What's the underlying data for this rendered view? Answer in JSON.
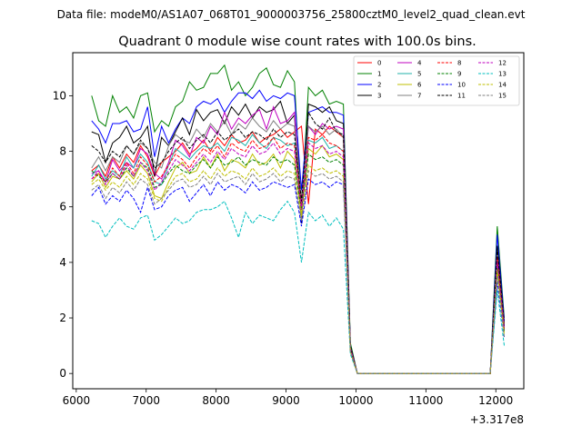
{
  "chart_data": {
    "type": "line",
    "suptitle": "Data file: modeM0/AS1A07_068T01_9000003756_25800cztM0_level2_quad_clean.evt",
    "title": "Quadrant 0 module wise count rates with 100.0s bins.",
    "xlabel": "",
    "ylabel": "",
    "x_offset_label": "+3.317e8",
    "xlim": [
      5950,
      12400
    ],
    "ylim": [
      -0.55,
      11.55
    ],
    "xticks": [
      6000,
      7000,
      8000,
      9000,
      10000,
      11000,
      12000
    ],
    "yticks": [
      0,
      2,
      4,
      6,
      8,
      10
    ],
    "legend_position": "top-right",
    "x": [
      6220,
      6320,
      6420,
      6520,
      6620,
      6720,
      6820,
      6920,
      7020,
      7120,
      7220,
      7320,
      7420,
      7520,
      7620,
      7720,
      7820,
      7920,
      8020,
      8120,
      8220,
      8320,
      8420,
      8520,
      8620,
      8720,
      8820,
      8920,
      9020,
      9120,
      9220,
      9320,
      9420,
      9520,
      9620,
      9720,
      9820,
      9920,
      10020,
      10120,
      10220,
      10320,
      10420,
      10520,
      10620,
      10720,
      10820,
      10920,
      11020,
      11120,
      11220,
      11320,
      11420,
      11520,
      11620,
      11720,
      11820,
      11920,
      12020,
      12120
    ],
    "series": [
      {
        "name": "0",
        "color": "#ff0000",
        "dash": "solid",
        "values": [
          7.3,
          7.5,
          7.1,
          7.8,
          7.4,
          7.9,
          7.6,
          8.2,
          7.8,
          7.1,
          7.6,
          7.8,
          8.0,
          8.3,
          7.9,
          8.1,
          8.4,
          8.0,
          8.5,
          8.2,
          8.6,
          8.3,
          8.4,
          8.7,
          8.3,
          8.5,
          8.6,
          8.8,
          8.5,
          8.7,
          8.9,
          6.1,
          8.8,
          8.6,
          8.9,
          8.7,
          8.5,
          0.9,
          0,
          0,
          0,
          0,
          0,
          0,
          0,
          0,
          0,
          0,
          0,
          0,
          0,
          0,
          0,
          0,
          0,
          0,
          0,
          0,
          4.1,
          1.7
        ]
      },
      {
        "name": "1",
        "color": "#008000",
        "dash": "solid",
        "values": [
          10.0,
          9.1,
          8.9,
          10.0,
          9.4,
          9.6,
          9.2,
          10.0,
          10.1,
          8.7,
          9.1,
          8.9,
          9.6,
          9.8,
          10.5,
          10.2,
          10.3,
          10.8,
          10.8,
          11.1,
          10.2,
          10.5,
          10.0,
          10.3,
          10.8,
          11.0,
          10.4,
          10.3,
          10.9,
          10.5,
          5.9,
          10.3,
          10.0,
          10.2,
          9.7,
          9.8,
          9.7,
          1.1,
          0,
          0,
          0,
          0,
          0,
          0,
          0,
          0,
          0,
          0,
          0,
          0,
          0,
          0,
          0,
          0,
          0,
          0,
          0,
          0,
          5.3,
          2.0
        ]
      },
      {
        "name": "2",
        "color": "#0000ff",
        "dash": "solid",
        "values": [
          9.1,
          8.8,
          8.3,
          9.0,
          9.0,
          9.1,
          8.7,
          8.8,
          9.6,
          7.8,
          8.9,
          8.3,
          8.8,
          9.2,
          9.0,
          9.6,
          9.8,
          9.7,
          9.9,
          9.4,
          9.8,
          10.1,
          10.1,
          9.9,
          10.2,
          9.8,
          10.0,
          9.9,
          10.1,
          10.0,
          6.6,
          9.4,
          9.5,
          9.6,
          9.4,
          9.4,
          9.3,
          1.0,
          0,
          0,
          0,
          0,
          0,
          0,
          0,
          0,
          0,
          0,
          0,
          0,
          0,
          0,
          0,
          0,
          0,
          0,
          0,
          0,
          5.0,
          1.9
        ]
      },
      {
        "name": "3",
        "color": "#000000",
        "dash": "solid",
        "values": [
          8.7,
          8.6,
          7.6,
          8.3,
          8.5,
          8.9,
          8.3,
          8.5,
          8.9,
          7.1,
          8.5,
          8.2,
          8.7,
          9.2,
          8.6,
          9.5,
          9.1,
          9.4,
          9.5,
          9.0,
          9.6,
          9.3,
          9.7,
          9.2,
          9.6,
          9.4,
          9.5,
          9.8,
          9.0,
          9.3,
          5.4,
          9.7,
          9.6,
          9.4,
          9.6,
          9.1,
          9.0,
          1.0,
          0,
          0,
          0,
          0,
          0,
          0,
          0,
          0,
          0,
          0,
          0,
          0,
          0,
          0,
          0,
          0,
          0,
          0,
          0,
          0,
          4.6,
          1.8
        ]
      },
      {
        "name": "4",
        "color": "#bf00bf",
        "dash": "solid",
        "values": [
          7.2,
          7.3,
          6.9,
          7.7,
          7.3,
          7.6,
          7.4,
          8.1,
          7.9,
          7.2,
          7.0,
          7.6,
          8.4,
          8.2,
          7.8,
          8.5,
          8.3,
          8.9,
          8.6,
          9.4,
          8.8,
          9.2,
          9.0,
          9.3,
          9.5,
          8.8,
          9.6,
          9.0,
          9.1,
          9.4,
          6.0,
          8.9,
          8.6,
          9.0,
          8.8,
          8.9,
          8.8,
          0.9,
          0,
          0,
          0,
          0,
          0,
          0,
          0,
          0,
          0,
          0,
          0,
          0,
          0,
          0,
          0,
          0,
          0,
          0,
          0,
          0,
          4.3,
          1.7
        ]
      },
      {
        "name": "5",
        "color": "#20b2aa",
        "dash": "solid",
        "values": [
          7.1,
          7.5,
          7.0,
          7.3,
          7.1,
          7.8,
          7.4,
          7.9,
          7.6,
          6.9,
          6.8,
          7.5,
          8.1,
          7.9,
          7.7,
          8.0,
          8.2,
          8.1,
          8.3,
          8.0,
          8.5,
          8.4,
          8.2,
          8.6,
          8.3,
          8.1,
          8.5,
          8.4,
          8.2,
          8.3,
          6.2,
          8.4,
          8.3,
          8.5,
          8.1,
          8.2,
          8.0,
          0.9,
          0,
          0,
          0,
          0,
          0,
          0,
          0,
          0,
          0,
          0,
          0,
          0,
          0,
          0,
          0,
          0,
          0,
          0,
          0,
          0,
          4.0,
          1.6
        ]
      },
      {
        "name": "6",
        "color": "#bfbf00",
        "dash": "solid",
        "values": [
          6.9,
          7.2,
          6.7,
          7.1,
          7.0,
          7.3,
          7.0,
          7.5,
          7.2,
          6.4,
          6.3,
          6.9,
          7.4,
          7.6,
          7.2,
          7.3,
          7.8,
          7.4,
          7.9,
          7.3,
          7.7,
          7.6,
          7.4,
          7.9,
          7.5,
          7.6,
          7.9,
          7.4,
          8.0,
          7.7,
          5.7,
          8.1,
          7.9,
          8.2,
          7.8,
          7.9,
          7.7,
          0.8,
          0,
          0,
          0,
          0,
          0,
          0,
          0,
          0,
          0,
          0,
          0,
          0,
          0,
          0,
          0,
          0,
          0,
          0,
          0,
          0,
          3.8,
          1.5
        ]
      },
      {
        "name": "7",
        "color": "#808080",
        "dash": "solid",
        "values": [
          7.4,
          7.8,
          7.3,
          7.8,
          7.6,
          8.2,
          7.9,
          8.3,
          8.1,
          7.6,
          7.4,
          8.2,
          8.6,
          8.4,
          8.3,
          8.8,
          8.5,
          9.0,
          8.7,
          9.1,
          8.6,
          9.0,
          8.8,
          9.2,
          8.9,
          8.7,
          9.1,
          8.8,
          9.0,
          8.9,
          6.3,
          8.9,
          8.7,
          8.9,
          8.6,
          8.8,
          8.5,
          0.9,
          0,
          0,
          0,
          0,
          0,
          0,
          0,
          0,
          0,
          0,
          0,
          0,
          0,
          0,
          0,
          0,
          0,
          0,
          0,
          0,
          4.4,
          1.7
        ]
      },
      {
        "name": "8",
        "color": "#ff0000",
        "dash": "dashed",
        "values": [
          7.0,
          7.2,
          6.9,
          7.4,
          7.1,
          7.6,
          7.2,
          7.8,
          7.5,
          6.9,
          7.1,
          7.5,
          7.9,
          7.7,
          7.4,
          7.8,
          8.1,
          7.9,
          8.2,
          7.8,
          8.3,
          8.1,
          8.0,
          8.4,
          8.1,
          8.2,
          8.5,
          8.1,
          8.3,
          8.2,
          6.0,
          8.5,
          8.4,
          8.6,
          8.3,
          8.2,
          8.0,
          0.9,
          0,
          0,
          0,
          0,
          0,
          0,
          0,
          0,
          0,
          0,
          0,
          0,
          0,
          0,
          0,
          0,
          0,
          0,
          0,
          0,
          4.2,
          1.6
        ]
      },
      {
        "name": "9",
        "color": "#008000",
        "dash": "dashed",
        "values": [
          7.3,
          7.1,
          6.9,
          7.2,
          7.0,
          7.4,
          7.1,
          7.6,
          7.4,
          6.7,
          6.8,
          7.2,
          7.5,
          7.3,
          7.2,
          7.5,
          7.7,
          7.4,
          7.8,
          7.5,
          7.6,
          7.8,
          7.5,
          7.7,
          7.6,
          7.5,
          7.8,
          7.6,
          7.7,
          7.5,
          5.9,
          7.9,
          7.7,
          7.8,
          7.6,
          7.7,
          7.5,
          0.8,
          0,
          0,
          0,
          0,
          0,
          0,
          0,
          0,
          0,
          0,
          0,
          0,
          0,
          0,
          0,
          0,
          0,
          0,
          0,
          0,
          3.9,
          1.5
        ]
      },
      {
        "name": "10",
        "color": "#0000ff",
        "dash": "dashed",
        "values": [
          6.4,
          6.7,
          6.1,
          6.4,
          6.2,
          6.6,
          6.3,
          5.8,
          6.7,
          5.9,
          6.0,
          6.4,
          6.6,
          6.7,
          6.2,
          6.5,
          6.8,
          6.4,
          6.9,
          6.6,
          6.8,
          6.7,
          6.5,
          6.9,
          6.6,
          6.7,
          6.9,
          6.8,
          6.7,
          6.8,
          5.3,
          7.0,
          6.8,
          6.9,
          6.7,
          6.9,
          6.8,
          0.8,
          0,
          0,
          0,
          0,
          0,
          0,
          0,
          0,
          0,
          0,
          0,
          0,
          0,
          0,
          0,
          0,
          0,
          0,
          0,
          0,
          3.3,
          1.3
        ]
      },
      {
        "name": "11",
        "color": "#000000",
        "dash": "dashed",
        "values": [
          8.2,
          8.0,
          7.6,
          8.0,
          7.8,
          8.2,
          7.9,
          8.4,
          8.1,
          7.4,
          7.6,
          8.0,
          8.3,
          8.5,
          8.1,
          8.4,
          8.6,
          8.3,
          8.7,
          8.4,
          8.6,
          8.8,
          8.5,
          8.7,
          8.6,
          8.4,
          8.8,
          8.5,
          8.7,
          8.6,
          6.2,
          9.4,
          9.0,
          8.8,
          9.2,
          8.7,
          8.6,
          0.9,
          0,
          0,
          0,
          0,
          0,
          0,
          0,
          0,
          0,
          0,
          0,
          0,
          0,
          0,
          0,
          0,
          0,
          0,
          0,
          0,
          4.5,
          1.7
        ]
      },
      {
        "name": "12",
        "color": "#bf00bf",
        "dash": "dashed",
        "values": [
          7.0,
          7.3,
          6.8,
          7.2,
          7.0,
          7.5,
          7.1,
          7.6,
          7.3,
          6.6,
          6.9,
          7.3,
          7.7,
          7.5,
          7.3,
          7.6,
          7.9,
          7.6,
          8.0,
          7.7,
          8.1,
          7.9,
          7.8,
          8.2,
          7.9,
          8.0,
          8.3,
          7.9,
          8.1,
          8.0,
          5.9,
          8.3,
          8.1,
          8.2,
          7.9,
          8.0,
          7.8,
          0.9,
          0,
          0,
          0,
          0,
          0,
          0,
          0,
          0,
          0,
          0,
          0,
          0,
          0,
          0,
          0,
          0,
          0,
          0,
          0,
          0,
          4.0,
          1.6
        ]
      },
      {
        "name": "13",
        "color": "#00bfbf",
        "dash": "dashed",
        "values": [
          5.5,
          5.4,
          4.9,
          5.3,
          5.6,
          5.3,
          5.2,
          5.6,
          5.7,
          4.8,
          5.0,
          5.3,
          5.6,
          5.4,
          5.5,
          5.8,
          5.9,
          5.9,
          6.0,
          6.2,
          5.6,
          4.9,
          5.8,
          5.4,
          5.7,
          5.6,
          5.5,
          5.9,
          6.2,
          5.8,
          4.0,
          5.8,
          5.5,
          5.7,
          5.3,
          5.6,
          5.2,
          0.7,
          0,
          0,
          0,
          0,
          0,
          0,
          0,
          0,
          0,
          0,
          0,
          0,
          0,
          0,
          0,
          0,
          0,
          0,
          0,
          0,
          3.0,
          1.0
        ]
      },
      {
        "name": "14",
        "color": "#bfbf00",
        "dash": "dashed",
        "values": [
          6.8,
          7.0,
          6.6,
          6.9,
          6.7,
          7.1,
          6.8,
          7.2,
          7.0,
          6.3,
          6.2,
          6.7,
          7.1,
          7.2,
          6.9,
          7.0,
          7.3,
          7.0,
          7.4,
          7.1,
          7.3,
          7.2,
          7.0,
          7.4,
          7.1,
          7.2,
          7.4,
          7.1,
          7.3,
          7.2,
          5.6,
          7.5,
          7.3,
          7.4,
          7.2,
          7.3,
          7.1,
          0.8,
          0,
          0,
          0,
          0,
          0,
          0,
          0,
          0,
          0,
          0,
          0,
          0,
          0,
          0,
          0,
          0,
          0,
          0,
          0,
          0,
          3.7,
          1.4
        ]
      },
      {
        "name": "15",
        "color": "#808080",
        "dash": "dashed",
        "values": [
          6.6,
          6.8,
          6.3,
          6.7,
          6.5,
          6.9,
          6.6,
          7.0,
          6.8,
          6.1,
          6.3,
          6.6,
          6.9,
          7.0,
          6.7,
          6.8,
          7.1,
          6.8,
          7.2,
          6.9,
          7.0,
          7.1,
          6.8,
          7.2,
          6.9,
          7.0,
          7.2,
          6.9,
          7.1,
          7.0,
          5.5,
          7.3,
          7.1,
          7.2,
          7.0,
          7.1,
          6.9,
          0.8,
          0,
          0,
          0,
          0,
          0,
          0,
          0,
          0,
          0,
          0,
          0,
          0,
          0,
          0,
          0,
          0,
          0,
          0,
          0,
          0,
          3.5,
          1.3
        ]
      }
    ]
  }
}
